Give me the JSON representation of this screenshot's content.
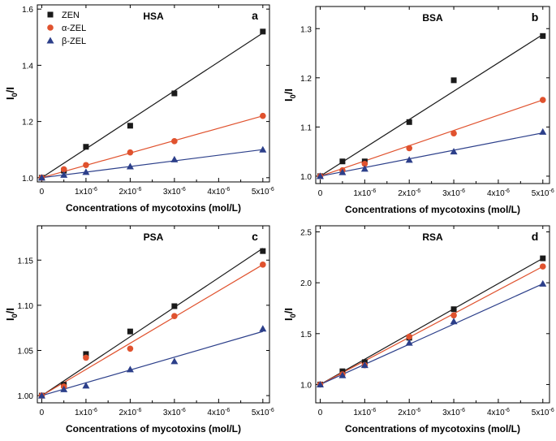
{
  "chart_data": [
    {
      "type": "scatter",
      "panel": "HSA",
      "letter": "a",
      "xlabel": "Concentrations of mycotoxins (mol/L)",
      "ylabel": "I0/I",
      "xlim": [
        -0.1,
        5.15
      ],
      "ylim": [
        0.985,
        1.615
      ],
      "yticks": [
        1.0,
        1.2,
        1.4,
        1.6
      ],
      "ytick_labels": [
        "1.0",
        "1.2",
        "1.4",
        "1.6"
      ],
      "legend": "top-left",
      "series": [
        {
          "name": "ZEN",
          "marker": "square",
          "color": "#1a1a1a",
          "x": [
            0,
            0.5,
            1,
            2,
            3,
            5
          ],
          "y": [
            1.0,
            1.025,
            1.11,
            1.185,
            1.3,
            1.52
          ],
          "fit": [
            [
              0,
              1.0
            ],
            [
              5,
              1.515
            ]
          ]
        },
        {
          "name": "α-ZEL",
          "marker": "circle",
          "color": "#e0522e",
          "x": [
            0,
            0.5,
            1,
            2,
            3,
            5
          ],
          "y": [
            1.0,
            1.03,
            1.045,
            1.09,
            1.13,
            1.22
          ],
          "fit": [
            [
              0,
              1.0
            ],
            [
              5,
              1.22
            ]
          ]
        },
        {
          "name": "β-ZEL",
          "marker": "triangle",
          "color": "#2c3f8a",
          "x": [
            0,
            0.5,
            1,
            2,
            3,
            5
          ],
          "y": [
            1.0,
            1.01,
            1.02,
            1.04,
            1.065,
            1.1
          ],
          "fit": [
            [
              0,
              1.0
            ],
            [
              5,
              1.1
            ]
          ]
        }
      ]
    },
    {
      "type": "scatter",
      "panel": "BSA",
      "letter": "b",
      "xlabel": "Concentrations of mycotoxins (mol/L)",
      "ylabel": "I0/I",
      "xlim": [
        -0.1,
        5.15
      ],
      "ylim": [
        0.985,
        1.345
      ],
      "yticks": [
        1.0,
        1.1,
        1.2,
        1.3
      ],
      "ytick_labels": [
        "1.0",
        "1.1",
        "1.2",
        "1.3"
      ],
      "series": [
        {
          "name": "ZEN",
          "marker": "square",
          "color": "#1a1a1a",
          "x": [
            0,
            0.5,
            1,
            2,
            3,
            5
          ],
          "y": [
            1.0,
            1.03,
            1.03,
            1.11,
            1.195,
            1.285
          ],
          "fit": [
            [
              0,
              1.0
            ],
            [
              5,
              1.288
            ]
          ]
        },
        {
          "name": "α-ZEL",
          "marker": "circle",
          "color": "#e0522e",
          "x": [
            0,
            0.5,
            1,
            2,
            3,
            5
          ],
          "y": [
            1.0,
            1.012,
            1.025,
            1.057,
            1.087,
            1.155
          ],
          "fit": [
            [
              0,
              1.0
            ],
            [
              5,
              1.155
            ]
          ]
        },
        {
          "name": "β-ZEL",
          "marker": "triangle",
          "color": "#2c3f8a",
          "x": [
            0,
            0.5,
            1,
            2,
            3,
            5
          ],
          "y": [
            1.0,
            1.008,
            1.015,
            1.033,
            1.05,
            1.09
          ],
          "fit": [
            [
              0,
              1.0
            ],
            [
              5,
              1.088
            ]
          ]
        }
      ]
    },
    {
      "type": "scatter",
      "panel": "PSA",
      "letter": "c",
      "xlabel": "Concentrations of mycotoxins (mol/L)",
      "ylabel": "I0/I",
      "xlim": [
        -0.1,
        5.15
      ],
      "ylim": [
        0.992,
        1.188
      ],
      "yticks": [
        1.0,
        1.05,
        1.1,
        1.15
      ],
      "ytick_labels": [
        "1.00",
        "1.05",
        "1.10",
        "1.15"
      ],
      "series": [
        {
          "name": "ZEN",
          "marker": "square",
          "color": "#1a1a1a",
          "x": [
            0,
            0.5,
            1,
            2,
            3,
            5
          ],
          "y": [
            1.0,
            1.012,
            1.046,
            1.071,
            1.099,
            1.16
          ],
          "fit": [
            [
              0,
              1.0
            ],
            [
              5,
              1.163
            ]
          ]
        },
        {
          "name": "α-ZEL",
          "marker": "circle",
          "color": "#e0522e",
          "x": [
            0,
            0.5,
            1,
            2,
            3,
            5
          ],
          "y": [
            1.0,
            1.01,
            1.042,
            1.052,
            1.088,
            1.145
          ],
          "fit": [
            [
              0,
              1.0
            ],
            [
              5,
              1.145
            ]
          ]
        },
        {
          "name": "β-ZEL",
          "marker": "triangle",
          "color": "#2c3f8a",
          "x": [
            0,
            0.5,
            1,
            2,
            3,
            5
          ],
          "y": [
            1.0,
            1.007,
            1.011,
            1.029,
            1.038,
            1.074
          ],
          "fit": [
            [
              0,
              1.0
            ],
            [
              5,
              1.071
            ]
          ]
        }
      ]
    },
    {
      "type": "scatter",
      "panel": "RSA",
      "letter": "d",
      "xlabel": "Concentrations of mycotoxins (mol/L)",
      "ylabel": "I0/I",
      "xlim": [
        -0.1,
        5.15
      ],
      "ylim": [
        0.82,
        2.56
      ],
      "yticks": [
        1.0,
        1.5,
        2.0,
        2.5
      ],
      "ytick_labels": [
        "1.0",
        "1.5",
        "2.0",
        "2.5"
      ],
      "series": [
        {
          "name": "ZEN",
          "marker": "square",
          "color": "#1a1a1a",
          "x": [
            0,
            0.5,
            1,
            2,
            3,
            5
          ],
          "y": [
            1.0,
            1.13,
            1.22,
            1.46,
            1.74,
            2.24
          ],
          "fit": [
            [
              0,
              1.0
            ],
            [
              5,
              2.24
            ]
          ]
        },
        {
          "name": "α-ZEL",
          "marker": "circle",
          "color": "#e0522e",
          "x": [
            0,
            0.5,
            1,
            2,
            3,
            5
          ],
          "y": [
            1.0,
            1.1,
            1.19,
            1.47,
            1.68,
            2.16
          ],
          "fit": [
            [
              0,
              1.0
            ],
            [
              5,
              2.16
            ]
          ]
        },
        {
          "name": "β-ZEL",
          "marker": "triangle",
          "color": "#2c3f8a",
          "x": [
            0,
            0.5,
            1,
            2,
            3,
            5
          ],
          "y": [
            1.0,
            1.09,
            1.19,
            1.41,
            1.62,
            1.99
          ],
          "fit": [
            [
              0,
              1.0
            ],
            [
              5,
              1.99
            ]
          ]
        }
      ]
    }
  ],
  "xtick_values": [
    0,
    1,
    2,
    3,
    4,
    5
  ],
  "xtick_labels": [
    {
      "base": "0",
      "exp": ""
    },
    {
      "base": "1x10",
      "exp": "-6"
    },
    {
      "base": "2x10",
      "exp": "-6"
    },
    {
      "base": "3x10",
      "exp": "-6"
    },
    {
      "base": "4x10",
      "exp": "-6"
    },
    {
      "base": "5x10",
      "exp": "-6"
    }
  ],
  "ylabel_parts": {
    "main": "I",
    "sub": "0",
    "tail": "/I"
  }
}
